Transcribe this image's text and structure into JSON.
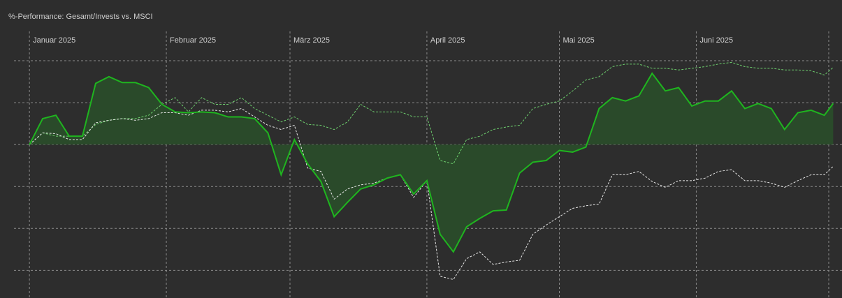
{
  "chart_data": {
    "type": "line",
    "title": "%-Performance: Gesamt/Invests vs. MSCI",
    "x": [
      0,
      3,
      6,
      9,
      12,
      15,
      18,
      21,
      24,
      27,
      30,
      33,
      36,
      39,
      42,
      45,
      48,
      51,
      54,
      57,
      60,
      63,
      66,
      69,
      72,
      75,
      78,
      81,
      84,
      87,
      90,
      93,
      96,
      99,
      102,
      105,
      108,
      111,
      114,
      117,
      120,
      123,
      126,
      129,
      132,
      135,
      138,
      141,
      144,
      147,
      150,
      153,
      156,
      159,
      162,
      165,
      168,
      171,
      174,
      177,
      180,
      182
    ],
    "xlim": [
      -3.5,
      184
    ],
    "xticks": [
      {
        "value": 0,
        "label": "Januar 2025"
      },
      {
        "value": 31,
        "label": "Februar 2025"
      },
      {
        "value": 59,
        "label": "März 2025"
      },
      {
        "value": 90,
        "label": "April 2025"
      },
      {
        "value": 120,
        "label": "Mai 2025"
      },
      {
        "value": 151,
        "label": "Juni 2025"
      }
    ],
    "ylim": [
      -18.3,
      13.5
    ],
    "yticks": [
      10,
      5,
      0,
      -5,
      -10,
      -15
    ],
    "grid": true,
    "series": [
      {
        "color": "#6ecf6e",
        "style": "dashed",
        "values": [
          0,
          1.4,
          1.0,
          1.0,
          1.0,
          2.4,
          2.9,
          3.1,
          3.1,
          3.5,
          4.8,
          5.6,
          3.9,
          5.6,
          4.8,
          4.8,
          5.6,
          4.3,
          3.5,
          2.7,
          3.3,
          2.4,
          2.3,
          1.8,
          2.7,
          4.8,
          3.9,
          3.9,
          3.9,
          3.3,
          3.3,
          -1.9,
          -2.3,
          0.6,
          1.0,
          1.8,
          2.1,
          2.3,
          4.3,
          4.8,
          5.2,
          6.4,
          7.7,
          8.1,
          9.3,
          9.6,
          9.6,
          9.1,
          9.1,
          8.9,
          9.1,
          9.3,
          9.6,
          9.8,
          9.3,
          9.1,
          9.1,
          8.9,
          8.9,
          8.8,
          8.3,
          9.2
        ]
      },
      {
        "color": "#e6e6e6",
        "style": "dashed",
        "values": [
          0,
          1.4,
          1.3,
          0.6,
          0.6,
          2.6,
          2.9,
          3.1,
          2.9,
          3.1,
          3.8,
          3.8,
          3.5,
          4.1,
          4.1,
          3.9,
          4.3,
          3.3,
          2.3,
          1.8,
          2.3,
          -2.8,
          -3.2,
          -6.5,
          -5.3,
          -4.8,
          -4.6,
          -4.0,
          -3.6,
          -6.3,
          -4.3,
          -15.7,
          -16.1,
          -13.6,
          -12.8,
          -14.3,
          -14.0,
          -13.8,
          -10.7,
          -9.6,
          -8.6,
          -7.6,
          -7.3,
          -7.1,
          -3.6,
          -3.6,
          -3.2,
          -4.4,
          -5.1,
          -4.3,
          -4.3,
          -4.0,
          -3.2,
          -3.0,
          -4.3,
          -4.3,
          -4.6,
          -5.1,
          -4.3,
          -3.6,
          -3.6,
          -2.6
        ]
      },
      {
        "color": "#1fb51f",
        "style": "solid",
        "fill": "#2a4a2a",
        "values": [
          0,
          3.1,
          3.5,
          1.0,
          1.0,
          7.3,
          8.1,
          7.4,
          7.4,
          6.8,
          4.8,
          3.9,
          3.8,
          3.9,
          3.8,
          3.3,
          3.3,
          3.1,
          1.4,
          -3.6,
          0.6,
          -2.3,
          -4.4,
          -8.6,
          -6.9,
          -5.3,
          -4.8,
          -4.0,
          -3.6,
          -5.9,
          -4.3,
          -10.7,
          -12.8,
          -9.8,
          -8.8,
          -7.9,
          -7.8,
          -3.4,
          -2.1,
          -1.9,
          -0.7,
          -0.9,
          -0.3,
          4.3,
          5.6,
          5.2,
          5.8,
          8.5,
          6.4,
          6.8,
          4.6,
          5.2,
          5.2,
          6.4,
          4.3,
          4.9,
          4.3,
          1.8,
          3.8,
          4.1,
          3.5,
          4.9
        ]
      }
    ]
  }
}
